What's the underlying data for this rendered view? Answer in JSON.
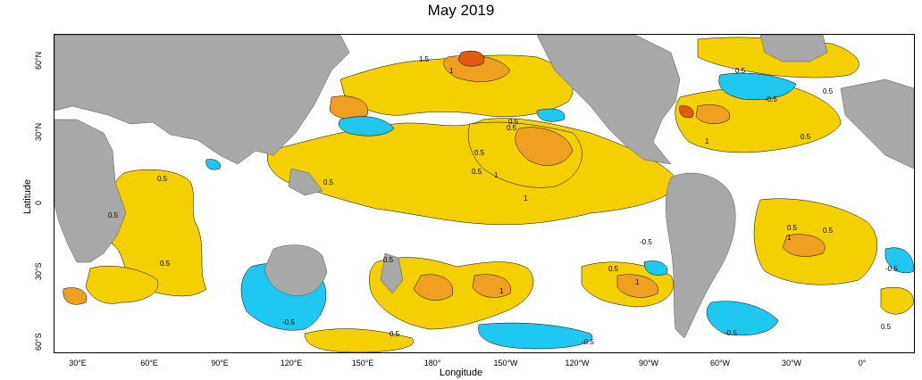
{
  "title": "May 2019",
  "axes": {
    "xlabel": "Longitude",
    "ylabel": "Latitude",
    "xticks": [
      "30°E",
      "60°E",
      "90°E",
      "120°E",
      "150°E",
      "180°",
      "150°W",
      "120°W",
      "90°W",
      "60°W",
      "30°W",
      "0°"
    ],
    "yticks": [
      "60°N",
      "30°N",
      "0",
      "30°S",
      "60°S"
    ]
  },
  "contour_labels": {
    "l1": "1.5",
    "l2": "1",
    "l3": "0.5",
    "l4": "0.5",
    "l5": "0.5",
    "l6": "0.5",
    "l7": "0.5",
    "l8": "0.5",
    "l9": "1",
    "l10": "0.5",
    "l11": "1",
    "l12": "0.5",
    "l13": "0.5",
    "l14": "0.5",
    "l15": "0.5",
    "l16": "1",
    "l17": "0.5",
    "l18": "1",
    "l19": "0.5",
    "l20": "-0.5",
    "l21": "0.5",
    "l22": "-0.5",
    "l23": "-0.5",
    "l24": "-0.5",
    "l25": "0.5",
    "l26": "1",
    "l27": "0.5",
    "l28": "-0.5",
    "l29": "0.5",
    "l30": "1",
    "l31": "-0.5"
  },
  "colors": {
    "land": "#a8a8a8",
    "ocean": "#ffffff",
    "warm": "#f5d000",
    "warm2": "#f0a020",
    "hot": "#e05a10",
    "hottest": "#d02010",
    "cool": "#1ec8f0",
    "cool2": "#20a8e8"
  }
}
